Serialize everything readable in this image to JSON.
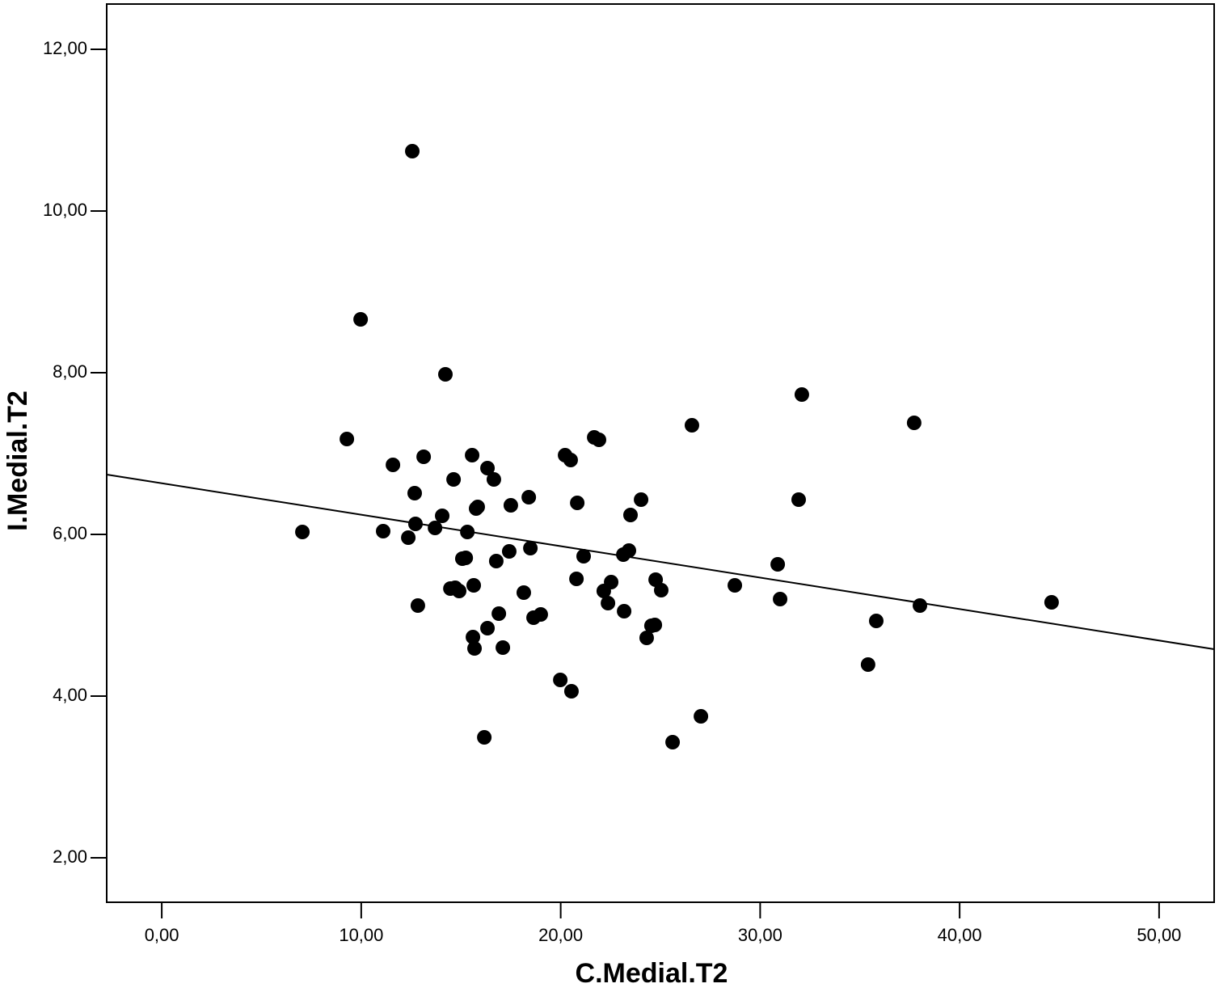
{
  "chart_data": {
    "type": "scatter",
    "x_label": "C.Medial.T2",
    "y_label": "I.Medial.T2",
    "xlim": [
      -2.76,
      52.76
    ],
    "ylim": [
      1.45,
      12.56
    ],
    "xticks": [
      {
        "value": 0,
        "label": "0,00"
      },
      {
        "value": 10,
        "label": "10,00"
      },
      {
        "value": 20,
        "label": "20,00"
      },
      {
        "value": 30,
        "label": "30,00"
      },
      {
        "value": 40,
        "label": "40,00"
      },
      {
        "value": 50,
        "label": "50,00"
      }
    ],
    "yticks": [
      {
        "value": 2,
        "label": "2,00"
      },
      {
        "value": 4,
        "label": "4,00"
      },
      {
        "value": 6,
        "label": "6,00"
      },
      {
        "value": 8,
        "label": "8,00"
      },
      {
        "value": 10,
        "label": "10,00"
      },
      {
        "value": 12,
        "label": "12,00"
      }
    ],
    "color": "#000000",
    "x": [
      7.05,
      9.28,
      9.97,
      11.1,
      11.59,
      12.36,
      12.56,
      12.68,
      12.72,
      12.84,
      13.13,
      13.7,
      14.06,
      14.22,
      14.47,
      14.63,
      14.71,
      14.91,
      15.07,
      15.24,
      15.32,
      15.56,
      15.64,
      15.6,
      15.68,
      15.76,
      15.84,
      16.17,
      16.33,
      16.33,
      16.65,
      16.77,
      16.9,
      17.1,
      17.42,
      17.5,
      18.15,
      18.4,
      18.48,
      18.64,
      19.0,
      19.98,
      20.22,
      20.5,
      20.54,
      20.79,
      20.83,
      21.15,
      21.68,
      21.92,
      22.16,
      22.37,
      22.53,
      23.14,
      23.18,
      23.42,
      23.5,
      24.03,
      24.31,
      24.55,
      24.72,
      24.76,
      25.04,
      25.61,
      26.58,
      27.03,
      28.73,
      30.88,
      31.0,
      31.93,
      32.09,
      35.41,
      35.82,
      37.72,
      38.01,
      44.61
    ],
    "values": [
      6.03,
      7.18,
      8.66,
      6.04,
      6.86,
      5.96,
      10.74,
      6.51,
      6.13,
      5.12,
      6.96,
      6.08,
      6.23,
      7.98,
      5.33,
      6.68,
      5.34,
      5.3,
      5.7,
      5.71,
      6.03,
      6.98,
      5.37,
      4.73,
      4.59,
      6.32,
      6.34,
      3.49,
      6.82,
      4.84,
      6.68,
      5.67,
      5.02,
      4.6,
      5.79,
      6.36,
      5.28,
      6.46,
      5.83,
      4.97,
      5.01,
      4.2,
      6.98,
      6.92,
      4.06,
      5.45,
      6.39,
      5.73,
      7.2,
      7.17,
      5.3,
      5.15,
      5.41,
      5.75,
      5.05,
      5.8,
      6.24,
      6.43,
      4.72,
      4.87,
      4.88,
      5.44,
      5.31,
      3.43,
      7.35,
      3.75,
      5.37,
      5.63,
      5.2,
      6.43,
      7.73,
      4.39,
      4.93,
      7.38,
      5.12,
      5.16
    ],
    "fit_line": {
      "x": [
        -2.76,
        52.76
      ],
      "y": [
        6.74,
        4.58
      ]
    }
  }
}
